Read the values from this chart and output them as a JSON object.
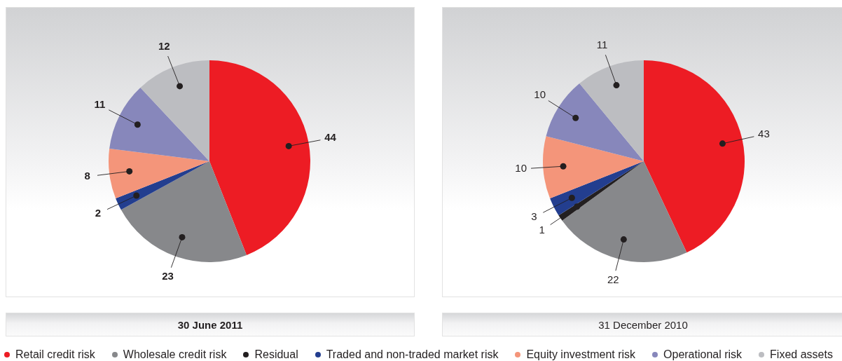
{
  "chart_data": [
    {
      "type": "pie",
      "title": "30 June 2011",
      "categories": [
        "Retail credit risk",
        "Wholesale credit risk",
        "Residual",
        "Traded and non-traded market risk",
        "Equity investment risk",
        "Operational risk",
        "Fixed assets"
      ],
      "values": [
        44,
        23,
        null,
        2,
        8,
        11,
        12
      ],
      "colors": [
        "#ed1c24",
        "#87888b",
        "#231f20",
        "#233e8f",
        "#f4957a",
        "#8787bb",
        "#bcbdc1"
      ],
      "data_labels": true,
      "legend": "bottom"
    },
    {
      "type": "pie",
      "title": "31 December 2010",
      "categories": [
        null,
        null,
        null,
        null,
        null,
        null,
        null
      ],
      "values": [
        43,
        22,
        1,
        3,
        10,
        10,
        11
      ],
      "colors": [
        "#ed1c24",
        "#87888b",
        "#231f20",
        "#233e8f",
        "#f4957a",
        "#8787bb",
        "#bcbdc1"
      ],
      "data_labels": true
    }
  ]
}
